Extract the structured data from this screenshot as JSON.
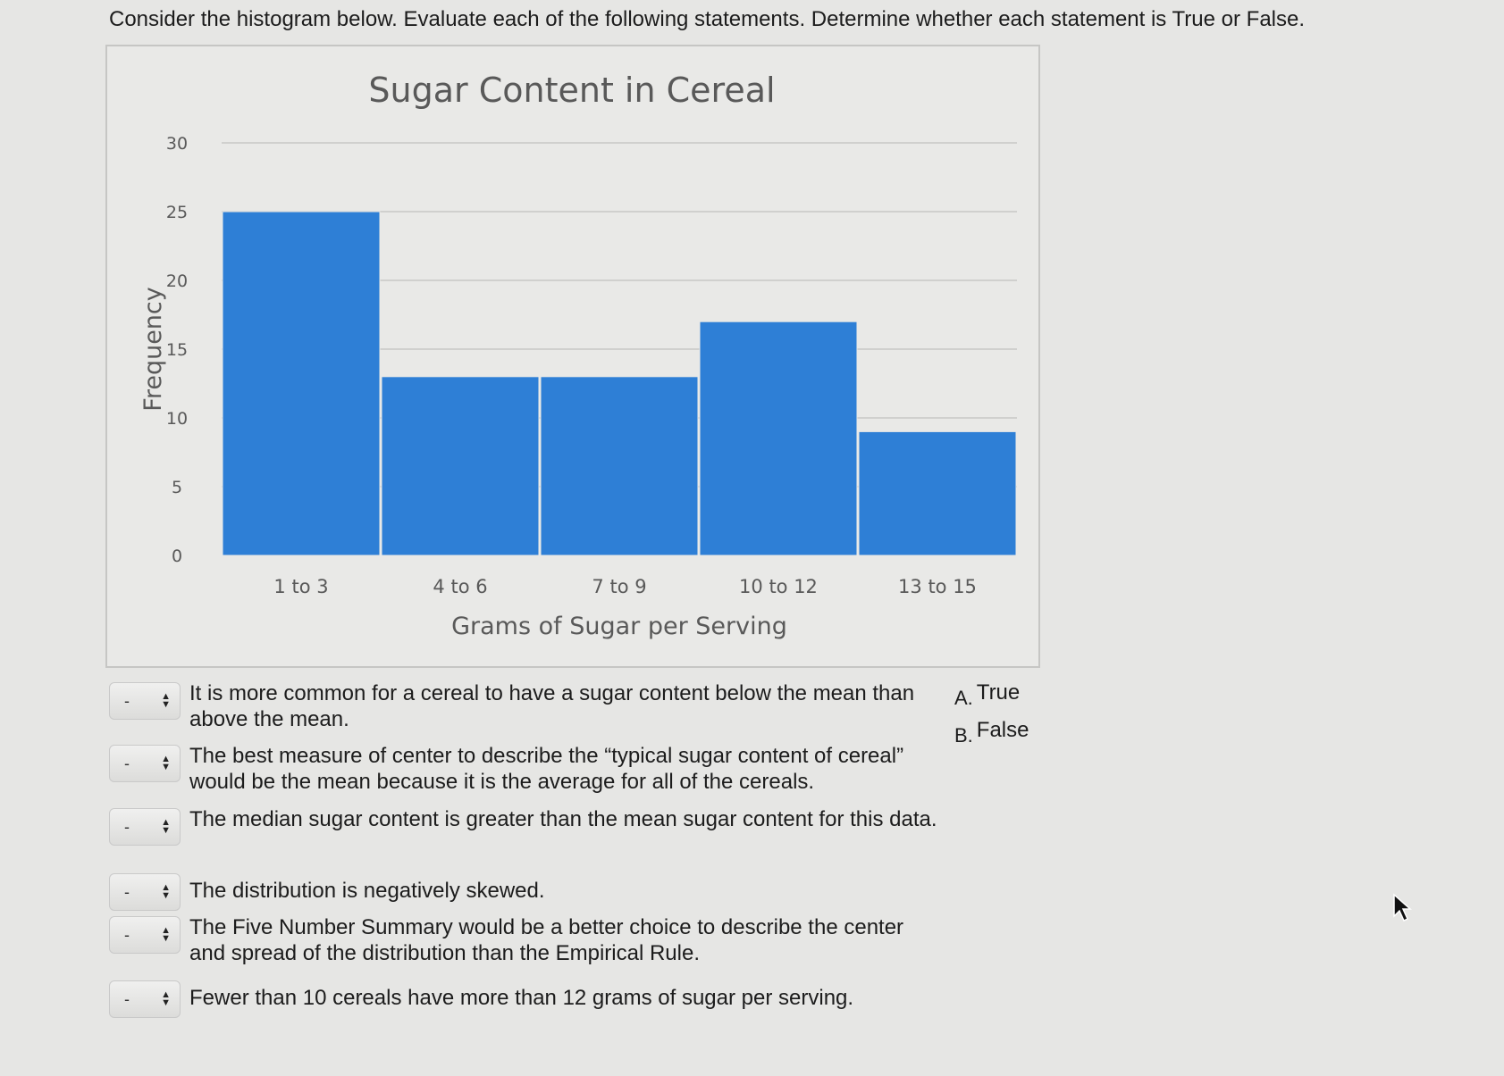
{
  "prompt": "Consider the histogram below. Evaluate each of the following statements. Determine whether each statement is True or False.",
  "chart_data": {
    "type": "bar",
    "title": "Sugar Content in Cereal",
    "xlabel": "Grams of Sugar per Serving",
    "ylabel": "Frequency",
    "categories": [
      "1 to 3",
      "4 to 6",
      "7 to 9",
      "10 to 12",
      "13 to 15"
    ],
    "values": [
      25,
      13,
      13,
      17,
      9
    ],
    "ylim": [
      0,
      30
    ],
    "yticks": [
      "0",
      "5",
      "10",
      "15",
      "20",
      "25",
      "30"
    ],
    "grid": true,
    "bar_color": "#2e7fd6"
  },
  "questions": [
    {
      "selected": "-",
      "text": "It is more common for a cereal to have a sugar content below the mean than above the mean."
    },
    {
      "selected": "-",
      "text": "The best measure of center to describe the “typical sugar content of cereal” would be the mean because it is the average for all of the cereals."
    },
    {
      "selected": "-",
      "text": "The median sugar content is greater than the mean sugar content for this data."
    },
    {
      "selected": "-",
      "text": "The distribution is negatively skewed."
    },
    {
      "selected": "-",
      "text": "The Five Number Summary would be a better choice to describe the center and spread of the distribution than the Empirical Rule."
    },
    {
      "selected": "-",
      "text": "Fewer than 10 cereals have more than 12 grams of sugar per serving."
    }
  ],
  "answers": [
    {
      "letter": "A.",
      "label": "True"
    },
    {
      "letter": "B.",
      "label": "False"
    }
  ]
}
